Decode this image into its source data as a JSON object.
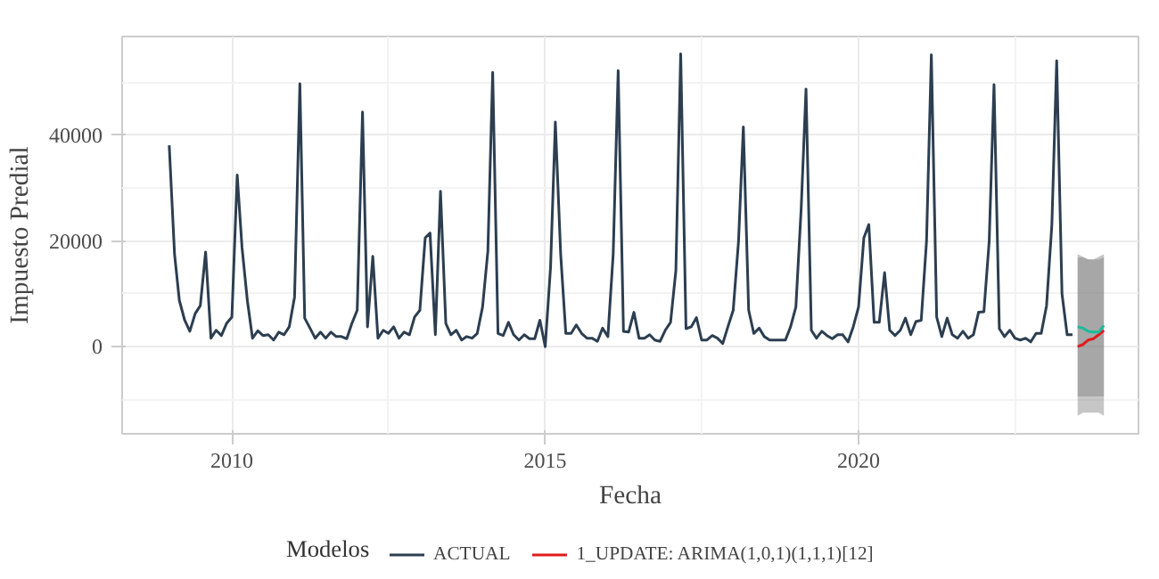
{
  "chart_data": {
    "type": "line",
    "xlabel": "Fecha",
    "ylabel": "Impuesto Predial",
    "legend_title": "Modelos",
    "legend": "bottom",
    "grid": true,
    "xlim": [
      "2008-04",
      "2024-06-20"
    ],
    "xticks": [
      "2010",
      "2015",
      "2020"
    ],
    "ylim": [
      -16500,
      58700
    ],
    "yticks": [
      0,
      20000,
      40000
    ],
    "x": [
      "2009-01",
      "2009-02",
      "2009-03",
      "2009-04",
      "2009-05",
      "2009-06",
      "2009-07",
      "2009-08",
      "2009-09",
      "2009-10",
      "2009-11",
      "2009-12",
      "2010-01",
      "2010-02",
      "2010-03",
      "2010-04",
      "2010-05",
      "2010-06",
      "2010-07",
      "2010-08",
      "2010-09",
      "2010-10",
      "2010-11",
      "2010-12",
      "2011-01",
      "2011-02",
      "2011-03",
      "2011-04",
      "2011-05",
      "2011-06",
      "2011-07",
      "2011-08",
      "2011-09",
      "2011-10",
      "2011-11",
      "2011-12",
      "2012-01",
      "2012-02",
      "2012-03",
      "2012-04",
      "2012-05",
      "2012-06",
      "2012-07",
      "2012-08",
      "2012-09",
      "2012-10",
      "2012-11",
      "2012-12",
      "2013-01",
      "2013-02",
      "2013-03",
      "2013-04",
      "2013-05",
      "2013-06",
      "2013-07",
      "2013-08",
      "2013-09",
      "2013-10",
      "2013-11",
      "2013-12",
      "2014-01",
      "2014-02",
      "2014-03",
      "2014-04",
      "2014-05",
      "2014-06",
      "2014-07",
      "2014-08",
      "2014-09",
      "2014-10",
      "2014-11",
      "2014-12",
      "2015-01",
      "2015-02",
      "2015-03",
      "2015-04",
      "2015-05",
      "2015-06",
      "2015-07",
      "2015-08",
      "2015-09",
      "2015-10",
      "2015-11",
      "2015-12",
      "2016-01",
      "2016-02",
      "2016-03",
      "2016-04",
      "2016-05",
      "2016-06",
      "2016-07",
      "2016-08",
      "2016-09",
      "2016-10",
      "2016-11",
      "2016-12",
      "2017-01",
      "2017-02",
      "2017-03",
      "2017-04",
      "2017-05",
      "2017-06",
      "2017-07",
      "2017-08",
      "2017-09",
      "2017-10",
      "2017-11",
      "2017-12",
      "2018-01",
      "2018-02",
      "2018-03",
      "2018-04",
      "2018-05",
      "2018-06",
      "2018-07",
      "2018-08",
      "2018-09",
      "2018-10",
      "2018-11",
      "2018-12",
      "2019-01",
      "2019-02",
      "2019-03",
      "2019-04",
      "2019-05",
      "2019-06",
      "2019-07",
      "2019-08",
      "2019-09",
      "2019-10",
      "2019-11",
      "2019-12",
      "2020-01",
      "2020-02",
      "2020-03",
      "2020-04",
      "2020-05",
      "2020-06",
      "2020-07",
      "2020-08",
      "2020-09",
      "2020-10",
      "2020-11",
      "2020-12",
      "2021-01",
      "2021-02",
      "2021-03",
      "2021-04",
      "2021-05",
      "2021-06",
      "2021-07",
      "2021-08",
      "2021-09",
      "2021-10",
      "2021-11",
      "2021-12",
      "2022-01",
      "2022-02",
      "2022-03",
      "2022-04",
      "2022-05",
      "2022-06",
      "2022-07",
      "2022-08",
      "2022-09",
      "2022-10",
      "2022-11",
      "2022-12",
      "2023-01",
      "2023-02",
      "2023-03",
      "2023-04",
      "2023-05",
      "2023-06"
    ],
    "series": [
      {
        "name": "ACTUAL",
        "color": "#2c3e50",
        "values": [
          38100,
          17500,
          8750,
          5000,
          2900,
          6250,
          7750,
          17900,
          1600,
          3100,
          2100,
          4400,
          5600,
          32500,
          18750,
          8750,
          1600,
          3000,
          2100,
          2250,
          1250,
          2750,
          2250,
          3750,
          9400,
          49750,
          5400,
          3500,
          1600,
          2750,
          1600,
          2750,
          1900,
          1900,
          1500,
          4400,
          6900,
          44400,
          3750,
          17100,
          1600,
          3100,
          2500,
          3750,
          1600,
          2750,
          2250,
          5600,
          6900,
          20600,
          21500,
          2250,
          29400,
          4400,
          2250,
          3100,
          1250,
          1900,
          1600,
          2500,
          7500,
          18100,
          51900,
          2500,
          2100,
          4600,
          2250,
          1250,
          2250,
          1500,
          1500,
          5000,
          0,
          15000,
          42500,
          17500,
          2500,
          2500,
          4100,
          2500,
          1600,
          1600,
          1000,
          3500,
          1900,
          17500,
          52250,
          2900,
          2750,
          6500,
          1600,
          1600,
          2250,
          1250,
          1000,
          3100,
          4600,
          14400,
          55400,
          3400,
          3750,
          5500,
          1250,
          1250,
          2100,
          1600,
          600,
          3750,
          6900,
          20000,
          41600,
          6900,
          2500,
          3500,
          1900,
          1250,
          1250,
          1250,
          1250,
          3750,
          7500,
          26250,
          48750,
          3100,
          1600,
          2900,
          2100,
          1500,
          2250,
          2250,
          900,
          3750,
          7500,
          20600,
          23100,
          4600,
          4600,
          14000,
          3100,
          2100,
          3100,
          5400,
          2250,
          4750,
          5000,
          20000,
          55250,
          5600,
          1900,
          5400,
          2250,
          1600,
          2900,
          1600,
          2250,
          6500,
          6600,
          20000,
          49600,
          3400,
          1900,
          3100,
          1600,
          1250,
          1600,
          900,
          2500,
          2500,
          7750,
          23100,
          54100,
          10000,
          2250,
          2250
        ]
      },
      {
        "name": "1_UPDATE: ARIMA(1,0,1)(1,1,1)[12]",
        "color": "#e31a1c",
        "x": [
          "2023-07",
          "2023-08",
          "2023-09",
          "2023-10",
          "2023-11",
          "2023-12"
        ],
        "values": [
          0,
          400,
          1250,
          1500,
          2250,
          3100
        ],
        "lower": [
          -9400,
          -9400,
          -9400,
          -9400,
          -9400,
          -9400
        ],
        "upper": [
          16900,
          16900,
          16500,
          16500,
          16500,
          16900
        ]
      },
      {
        "color": "#18bc9c",
        "x": [
          "2023-07",
          "2023-08",
          "2023-09",
          "2023-10",
          "2023-11",
          "2023-12"
        ],
        "values": [
          3750,
          3500,
          2900,
          2750,
          2750,
          4000
        ],
        "lower": [
          -13100,
          -12500,
          -12500,
          -12500,
          -12500,
          -13100
        ],
        "upper": [
          17500,
          17000,
          16500,
          16500,
          17000,
          17500
        ]
      }
    ]
  }
}
